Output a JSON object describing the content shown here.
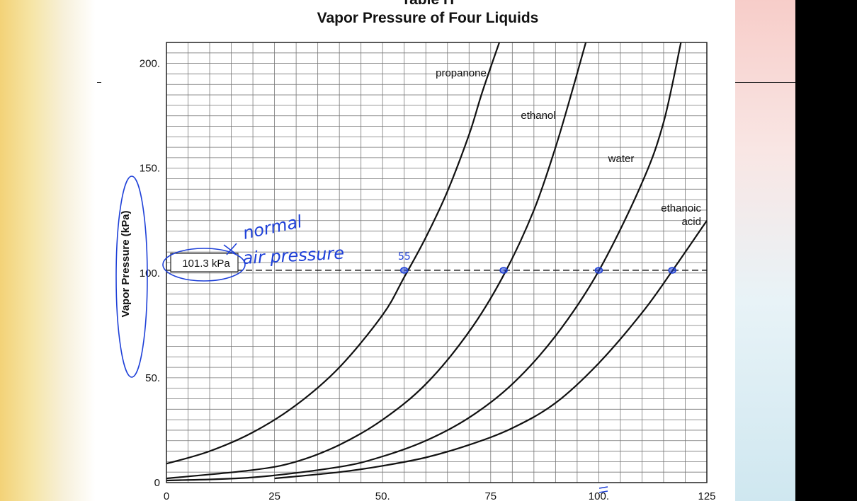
{
  "chart_data": {
    "type": "line",
    "table_label": "Table H",
    "title": "Vapor Pressure of Four Liquids",
    "xlabel": "",
    "ylabel": "Vapor Pressure (kPa)",
    "xlim": [
      0,
      125
    ],
    "ylim": [
      0,
      210
    ],
    "x_ticks": [
      "0",
      "25",
      "50.",
      "75",
      "100.",
      "125"
    ],
    "y_ticks": [
      "0",
      "50.",
      "100.",
      "150.",
      "200."
    ],
    "grid": true,
    "series": [
      {
        "name": "propanone",
        "x": [
          0,
          10,
          20,
          30,
          40,
          50,
          55,
          60,
          65,
          70,
          73,
          77
        ],
        "y": [
          9,
          15,
          24,
          37,
          55,
          80,
          98,
          117,
          139,
          166,
          186,
          210
        ]
      },
      {
        "name": "ethanol",
        "x": [
          0,
          20,
          30,
          40,
          50,
          60,
          70,
          78,
          85,
          90,
          94,
          97
        ],
        "y": [
          2,
          6,
          10,
          18,
          30,
          47,
          72,
          99,
          130,
          160,
          188,
          210
        ]
      },
      {
        "name": "water",
        "x": [
          0,
          20,
          40,
          50,
          60,
          70,
          80,
          90,
          100,
          110,
          115,
          119
        ],
        "y": [
          1,
          2.5,
          7.5,
          12.5,
          20,
          31,
          47,
          70,
          101,
          143,
          172,
          210
        ]
      },
      {
        "name": "ethanoic acid",
        "x": [
          25,
          40,
          50,
          60,
          70,
          80,
          90,
          100,
          110,
          117,
          125
        ],
        "y": [
          2,
          5,
          8,
          12,
          18,
          26,
          38,
          57,
          81,
          101,
          125
        ]
      }
    ],
    "reference_line": {
      "y": 101.3,
      "label": "101.3 kPa",
      "style": "dashed"
    },
    "curve_labels": {
      "propanone": "propanone",
      "ethanol": "ethanol",
      "water": "water",
      "ethanoic_1": "ethanoic",
      "ethanoic_2": "acid"
    },
    "annotations": {
      "handwritten_1": "normal",
      "handwritten_2": "air pressure",
      "handwritten_3": "55",
      "marked_points_x": [
        55,
        78,
        100,
        117
      ],
      "marked_points_y": 101.3,
      "color": "#1e40d8"
    }
  }
}
